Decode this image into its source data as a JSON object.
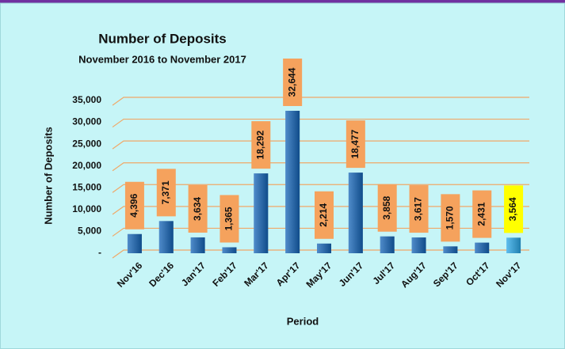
{
  "chart_data": {
    "type": "bar",
    "title": "Number of Deposits",
    "subtitle": "November 2016 to November 2017",
    "x_label": "Period",
    "y_label": "Number of Deposits",
    "categories": [
      "Nov'16",
      "Dec'16",
      "Jan'17",
      "Feb'17",
      "Mar'17",
      "Apr'17",
      "May'17",
      "Jun'17",
      "Jul'17",
      "Aug'17",
      "Sep'17",
      "Oct'17",
      "Nov'17"
    ],
    "values": [
      4396,
      7371,
      3634,
      1365,
      18292,
      32644,
      2214,
      18477,
      3858,
      3617,
      1570,
      2431,
      3564
    ],
    "value_labels": [
      "4,396",
      "7,371",
      "3,634",
      "1,365",
      "18,292",
      "32,644",
      "2,214",
      "18,477",
      "3,858",
      "3,617",
      "1,570",
      "2,431",
      "3,564"
    ],
    "colors": [
      "#1565b8",
      "#1565b8",
      "#1565b8",
      "#1565b8",
      "#1565b8",
      "#1565b8",
      "#1565b8",
      "#1565b8",
      "#1565b8",
      "#1565b8",
      "#1565b8",
      "#1565b8",
      "#2aa8e8"
    ],
    "label_box_colors": [
      "#f5a25d",
      "#f5a25d",
      "#f5a25d",
      "#f5a25d",
      "#f5a25d",
      "#f5a25d",
      "#f5a25d",
      "#f5a25d",
      "#f5a25d",
      "#f5a25d",
      "#f5a25d",
      "#f5a25d",
      "#ffff00"
    ],
    "ylim": [
      0,
      35000
    ],
    "yticks": [
      {
        "value": 0,
        "label": "-"
      },
      {
        "value": 5000,
        "label": "5,000"
      },
      {
        "value": 10000,
        "label": "10,000"
      },
      {
        "value": 15000,
        "label": "15,000"
      },
      {
        "value": 20000,
        "label": "20,000"
      },
      {
        "value": 25000,
        "label": "25,000"
      },
      {
        "value": 30000,
        "label": "30,000"
      },
      {
        "value": 35000,
        "label": "35,000"
      }
    ],
    "grid": true
  }
}
